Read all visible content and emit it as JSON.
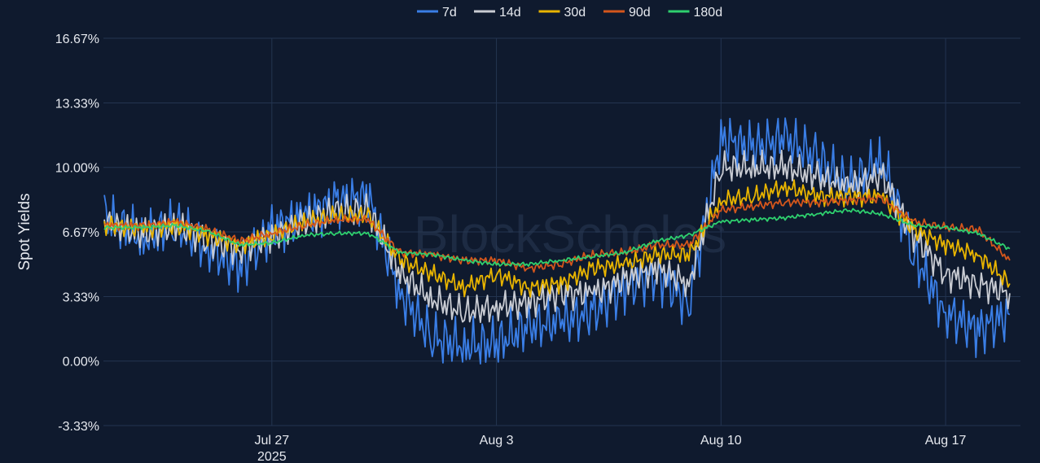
{
  "watermark": "BlockScholes",
  "chart_data": {
    "type": "line",
    "ylabel": "Spot Yields",
    "xlabel": "",
    "x_ticks": [
      {
        "label": "Jul 27",
        "sub": "2025",
        "date": "2025-07-27"
      },
      {
        "label": "Aug 3",
        "sub": "",
        "date": "2025-08-03"
      },
      {
        "label": "Aug 10",
        "sub": "",
        "date": "2025-08-10"
      },
      {
        "label": "Aug 17",
        "sub": "",
        "date": "2025-08-17"
      }
    ],
    "x_range": [
      "2025-07-21T18:00",
      "2025-08-19T08:00"
    ],
    "y_ticks": [
      "16.67%",
      "13.33%",
      "10.00%",
      "6.67%",
      "3.33%",
      "0.00%",
      "-3.33%"
    ],
    "y_tick_values": [
      16.67,
      13.33,
      10.0,
      6.67,
      3.33,
      0.0,
      -3.33
    ],
    "ylim": [
      -3.33,
      16.67
    ],
    "grid": true,
    "legend_position": "top-center",
    "x": [
      "2025-07-21",
      "2025-07-22",
      "2025-07-23",
      "2025-07-24",
      "2025-07-25",
      "2025-07-26",
      "2025-07-27",
      "2025-07-28",
      "2025-07-29",
      "2025-07-30",
      "2025-07-31",
      "2025-08-01",
      "2025-08-02",
      "2025-08-03",
      "2025-08-04",
      "2025-08-05",
      "2025-08-06",
      "2025-08-07",
      "2025-08-08",
      "2025-08-09",
      "2025-08-10",
      "2025-08-11",
      "2025-08-12",
      "2025-08-13",
      "2025-08-14",
      "2025-08-15",
      "2025-08-16",
      "2025-08-17",
      "2025-08-18",
      "2025-08-19"
    ],
    "series": [
      {
        "name": "7d",
        "color": "#3a7ee6",
        "values": [
          8.5,
          7.2,
          6.3,
          7.0,
          5.8,
          4.8,
          6.8,
          7.5,
          8.2,
          8.5,
          3.5,
          1.2,
          0.8,
          0.9,
          1.8,
          2.0,
          2.5,
          3.8,
          4.5,
          3.0,
          11.5,
          11.0,
          11.5,
          10.5,
          9.0,
          10.5,
          5.5,
          2.5,
          1.6,
          2.4
        ]
      },
      {
        "name": "14d",
        "color": "#c9ccd3",
        "values": [
          7.5,
          7.0,
          6.5,
          7.0,
          6.2,
          5.8,
          6.5,
          7.2,
          7.8,
          7.8,
          4.5,
          3.2,
          2.5,
          2.8,
          3.0,
          3.5,
          3.5,
          4.2,
          4.8,
          4.0,
          10.0,
          10.0,
          10.0,
          9.5,
          9.0,
          9.6,
          6.5,
          4.5,
          4.0,
          3.5
        ]
      },
      {
        "name": "30d",
        "color": "#e8b400",
        "values": [
          7.0,
          7.0,
          6.8,
          7.0,
          6.5,
          6.0,
          6.5,
          7.2,
          7.5,
          7.5,
          5.2,
          4.5,
          3.8,
          4.5,
          3.8,
          4.0,
          4.8,
          5.0,
          5.5,
          5.5,
          8.3,
          8.5,
          9.0,
          8.5,
          8.5,
          8.5,
          6.8,
          6.0,
          5.5,
          4.0
        ]
      },
      {
        "name": "90d",
        "color": "#d4561c",
        "values": [
          7.2,
          7.0,
          7.0,
          7.2,
          6.8,
          6.2,
          6.6,
          7.0,
          7.3,
          7.3,
          5.6,
          5.5,
          5.2,
          5.2,
          4.8,
          5.0,
          5.5,
          5.6,
          6.0,
          6.0,
          7.8,
          8.0,
          8.2,
          8.2,
          8.3,
          8.4,
          7.2,
          6.9,
          6.8,
          5.2
        ]
      },
      {
        "name": "180d",
        "color": "#2ed06e",
        "values": [
          6.9,
          6.9,
          6.9,
          7.0,
          6.7,
          6.0,
          6.1,
          6.5,
          6.6,
          6.6,
          5.6,
          5.5,
          5.2,
          5.0,
          5.0,
          5.2,
          5.4,
          5.6,
          6.2,
          6.5,
          7.2,
          7.3,
          7.4,
          7.6,
          7.8,
          7.6,
          7.0,
          6.9,
          6.6,
          5.8
        ]
      }
    ]
  }
}
